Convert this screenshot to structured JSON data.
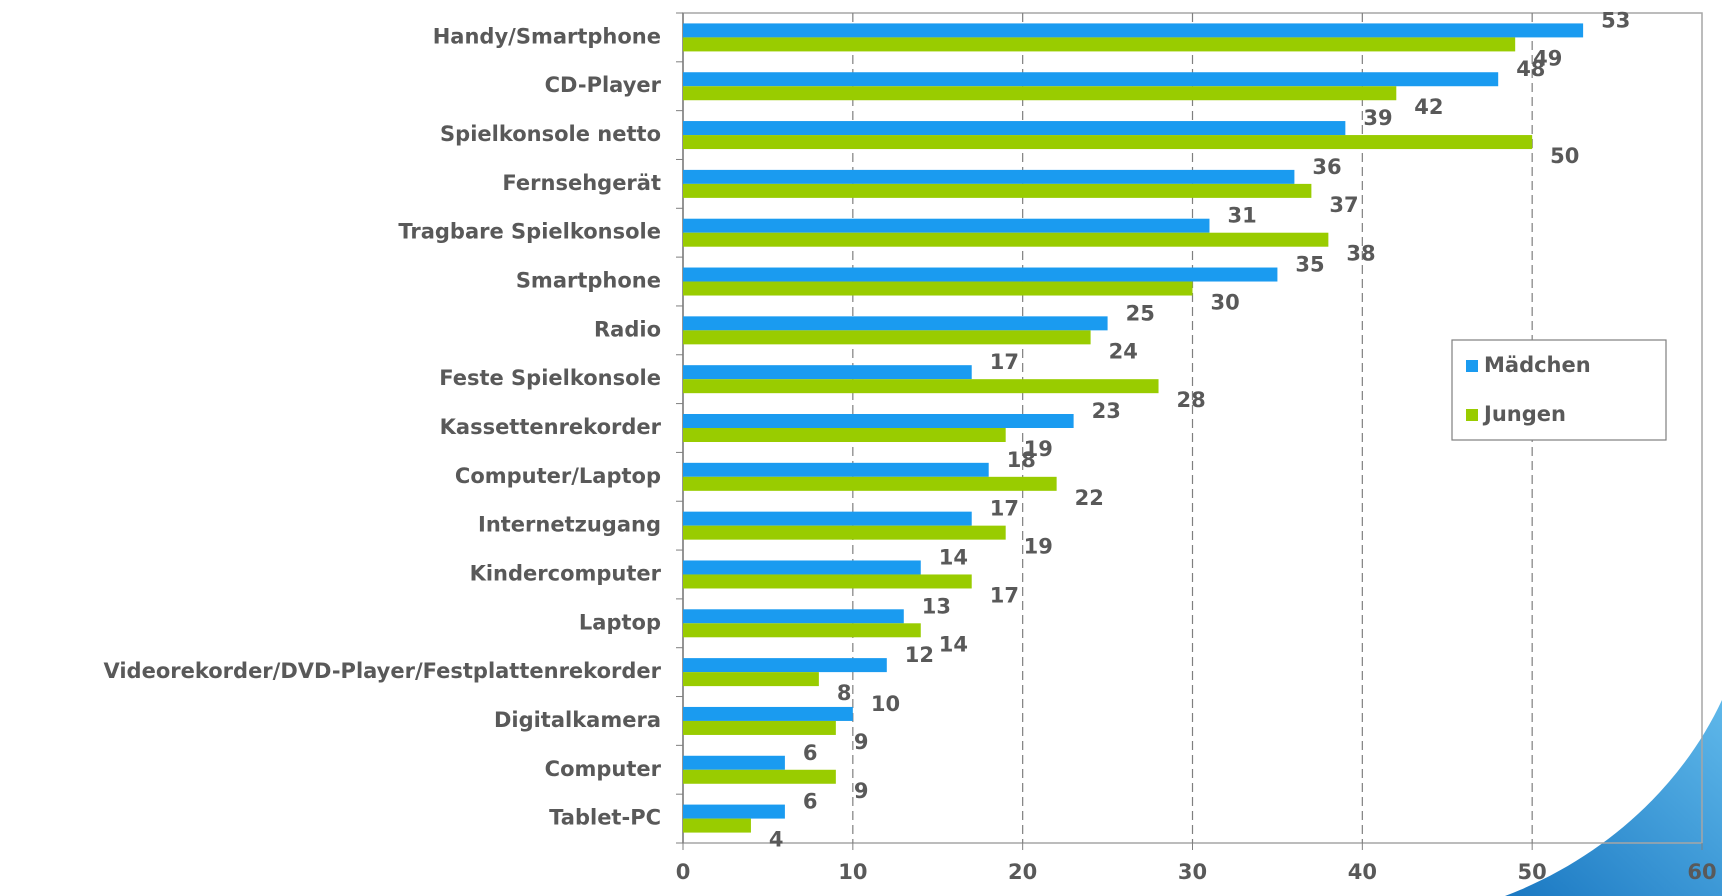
{
  "chart_data": {
    "type": "hbar",
    "categories": [
      "Handy/Smartphone",
      "CD-Player",
      "Spielkonsole netto",
      "Fernsehgerät",
      "Tragbare Spielkonsole",
      "Smartphone",
      "Radio",
      "Feste Spielkonsole",
      "Kassettenrekorder",
      "Computer/Laptop",
      "Internetzugang",
      "Kindercomputer",
      "Laptop",
      "Videorekorder/DVD-Player/Festplattenrekorder",
      "Digitalkamera",
      "Computer",
      "Tablet-PC"
    ],
    "series": [
      {
        "name": "Mädchen",
        "color": "#1a9bf0",
        "values": [
          53,
          48,
          39,
          36,
          31,
          35,
          25,
          17,
          23,
          18,
          17,
          14,
          13,
          12,
          10,
          6,
          6
        ]
      },
      {
        "name": "Jungen",
        "color": "#99cc00",
        "values": [
          49,
          42,
          50,
          37,
          38,
          30,
          24,
          28,
          19,
          22,
          19,
          17,
          14,
          8,
          9,
          9,
          4
        ]
      }
    ],
    "xlim": [
      0,
      60
    ],
    "xticks": [
      0,
      10,
      20,
      30,
      40,
      50,
      60
    ],
    "grid": true,
    "legend": "right"
  }
}
